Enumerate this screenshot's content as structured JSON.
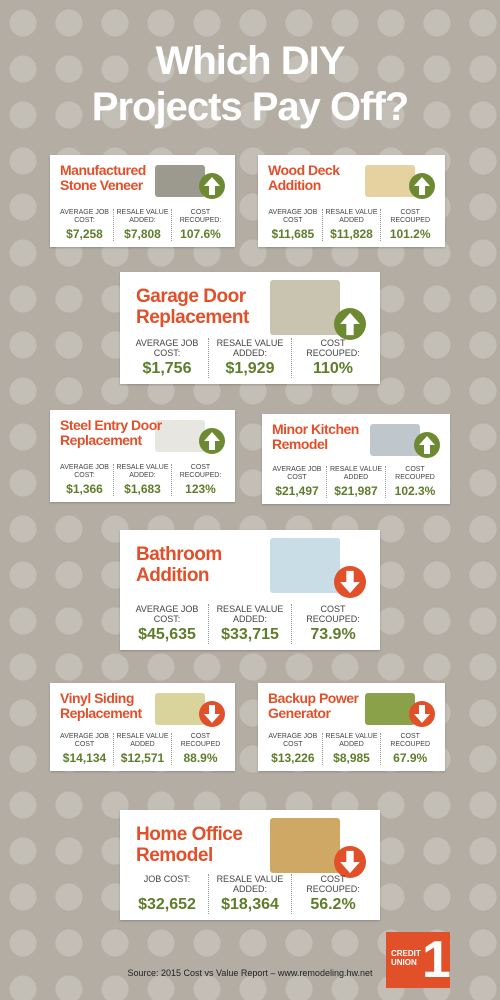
{
  "header": {
    "title_lines": [
      "Which DIY",
      "Projects Pay Off?"
    ]
  },
  "cards": [
    {
      "title_lines": [
        "Manufactured",
        "Stone Veneer"
      ],
      "trend": "up",
      "stats": [
        {
          "label": "AVERAGE JOB COST:",
          "value": "$7,258"
        },
        {
          "label": "RESALE VALUE ADDED:",
          "value": "$7,808"
        },
        {
          "label": "COST RECOUPED:",
          "value": "107.6%"
        }
      ]
    },
    {
      "title_lines": [
        "Wood Deck",
        "Addition"
      ],
      "trend": "up",
      "stats": [
        {
          "label": "AVERAGE JOB COST",
          "value": "$11,685"
        },
        {
          "label": "RESALE VALUE ADDED",
          "value": "$11,828"
        },
        {
          "label": "COST RECOUPED",
          "value": "101.2%"
        }
      ]
    },
    {
      "title_lines": [
        "Garage Door",
        "Replacement"
      ],
      "trend": "up",
      "stats": [
        {
          "label": "AVERAGE JOB COST:",
          "value": "$1,756"
        },
        {
          "label": "RESALE VALUE ADDED:",
          "value": "$1,929"
        },
        {
          "label": "COST RECOUPED:",
          "value": "110%"
        }
      ]
    },
    {
      "title_lines": [
        "Steel Entry Door",
        "Replacement"
      ],
      "trend": "up",
      "stats": [
        {
          "label": "AVERAGE JOB COST:",
          "value": "$1,366"
        },
        {
          "label": "RESALE VALUE ADDED:",
          "value": "$1,683"
        },
        {
          "label": "COST RECOUPED:",
          "value": "123%"
        }
      ]
    },
    {
      "title_lines": [
        "Minor Kitchen",
        "Remodel"
      ],
      "trend": "up",
      "stats": [
        {
          "label": "AVERAGE JOB COST",
          "value": "$21,497"
        },
        {
          "label": "RESALE VALUE ADDED",
          "value": "$21,987"
        },
        {
          "label": "COST RECOUPED",
          "value": "102.3%"
        }
      ]
    },
    {
      "title_lines": [
        "Bathroom",
        "Addition"
      ],
      "trend": "down",
      "stats": [
        {
          "label": "AVERAGE JOB COST:",
          "value": "$45,635"
        },
        {
          "label": "RESALE VALUE ADDED:",
          "value": "$33,715"
        },
        {
          "label": "COST RECOUPED:",
          "value": "73.9%"
        }
      ]
    },
    {
      "title_lines": [
        "Vinyl Siding",
        "Replacement"
      ],
      "trend": "down",
      "stats": [
        {
          "label": "AVERAGE JOB COST",
          "value": "$14,134"
        },
        {
          "label": "RESALE VALUE ADDED",
          "value": "$12,571"
        },
        {
          "label": "COST RECOUPED",
          "value": "88.9%"
        }
      ]
    },
    {
      "title_lines": [
        "Backup Power",
        "Generator"
      ],
      "trend": "down",
      "stats": [
        {
          "label": "AVERAGE JOB COST",
          "value": "$13,226"
        },
        {
          "label": "RESALE VALUE ADDED",
          "value": "$8,985"
        },
        {
          "label": "COST RECOUPED",
          "value": "67.9%"
        }
      ]
    },
    {
      "title_lines": [
        "Home Office",
        "Remodel"
      ],
      "trend": "down",
      "stats": [
        {
          "label": "JOB COST:",
          "value": "$32,652"
        },
        {
          "label": "RESALE VALUE ADDED:",
          "value": "$18,364"
        },
        {
          "label": "COST RECOUPED:",
          "value": "56.2%"
        }
      ]
    }
  ],
  "footer": {
    "source": "Source: 2015 Cost vs Value Report – www.remodeling.hw.net",
    "logo_lines": [
      "CREDIT",
      "UNION"
    ],
    "logo_number": "1"
  }
}
